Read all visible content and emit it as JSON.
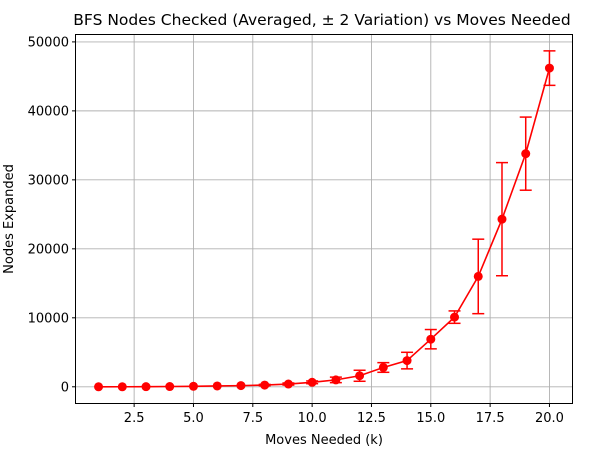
{
  "chart_data": {
    "type": "line",
    "title": "BFS Nodes Checked (Averaged, ± 2 Variation) vs Moves Needed",
    "xlabel": "Moves Needed (k)",
    "ylabel": "Nodes Expanded",
    "xlim": [
      0.05,
      20.95
    ],
    "ylim": [
      -2350,
      51000
    ],
    "xticks": [
      2.5,
      5.0,
      7.5,
      10.0,
      12.5,
      15.0,
      17.5,
      20.0
    ],
    "xtick_labels": [
      "2.5",
      "5.0",
      "7.5",
      "10.0",
      "12.5",
      "15.0",
      "17.5",
      "20.0"
    ],
    "yticks": [
      0,
      10000,
      20000,
      30000,
      40000,
      50000
    ],
    "ytick_labels": [
      "0",
      "10000",
      "20000",
      "30000",
      "40000",
      "50000"
    ],
    "grid": true,
    "series": [
      {
        "color": "#ff0000",
        "marker": "circle",
        "error_bars": true,
        "x": [
          1,
          2,
          3,
          4,
          5,
          6,
          7,
          8,
          9,
          10,
          11,
          12,
          13,
          14,
          15,
          16,
          17,
          18,
          19,
          20
        ],
        "y": [
          0,
          5,
          15,
          40,
          70,
          120,
          170,
          250,
          400,
          650,
          1000,
          1600,
          2800,
          3800,
          6900,
          10100,
          16000,
          24300,
          33800,
          46200
        ],
        "error": [
          0,
          0,
          0,
          0,
          0,
          0,
          0,
          100,
          150,
          200,
          400,
          800,
          700,
          1200,
          1400,
          900,
          5400,
          8200,
          5300,
          2500
        ]
      }
    ]
  }
}
